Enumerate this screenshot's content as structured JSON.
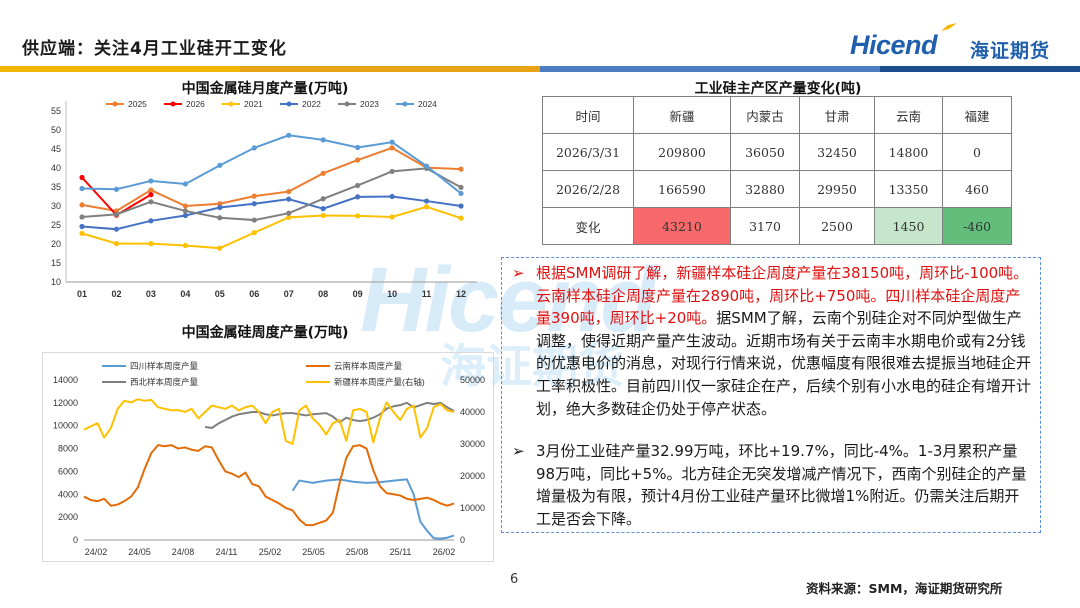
{
  "header": {
    "title": "供应端：关注4月工业硅开工变化",
    "logo_text": "Hicend",
    "logo_cn": "海证期货",
    "bar_colors": [
      "#f2b600",
      "#e8a317",
      "#4a7ec0",
      "#1f4e8c"
    ]
  },
  "watermark": {
    "text": "Hicend",
    "cn": "海证期货"
  },
  "monthly_chart": {
    "title": "中国金属硅月度产量(万吨)",
    "chart_data": {
      "type": "line",
      "title": "中国金属硅月度产量(万吨)",
      "categories": [
        "01",
        "02",
        "03",
        "04",
        "05",
        "06",
        "07",
        "08",
        "09",
        "10",
        "11",
        "12"
      ],
      "ylim": [
        10,
        55
      ],
      "yticks": [
        10,
        15,
        20,
        25,
        30,
        35,
        40,
        45,
        50,
        55
      ],
      "series": [
        {
          "name": "2025",
          "color": "#ed7d31",
          "values": [
            30.3,
            28.7,
            34.2,
            30.0,
            30.6,
            32.6,
            33.8,
            38.6,
            42.1,
            45.3,
            40.1,
            39.7
          ]
        },
        {
          "name": "2026",
          "color": "#ff0000",
          "values": [
            37.5,
            27.6,
            33.0,
            null,
            null,
            null,
            null,
            null,
            null,
            null,
            null,
            null
          ]
        },
        {
          "name": "2021",
          "color": "#ffc000",
          "values": [
            22.8,
            20.1,
            20.1,
            19.6,
            18.9,
            23.0,
            27.0,
            27.5,
            27.4,
            27.1,
            29.8,
            26.8
          ]
        },
        {
          "name": "2022",
          "color": "#4472c4",
          "values": [
            24.6,
            23.9,
            26.1,
            27.5,
            29.6,
            30.6,
            31.8,
            29.3,
            32.4,
            32.5,
            31.3,
            30.0
          ]
        },
        {
          "name": "2023",
          "color": "#808080",
          "values": [
            27.1,
            27.8,
            31.1,
            28.7,
            26.9,
            26.3,
            28.1,
            31.9,
            35.4,
            39.1,
            39.9,
            34.9
          ]
        },
        {
          "name": "2024",
          "color": "#5b9bd5",
          "values": [
            34.6,
            34.4,
            36.6,
            35.8,
            40.7,
            45.3,
            48.6,
            47.4,
            45.4,
            46.8,
            40.5,
            33.3
          ]
        }
      ]
    }
  },
  "weekly_chart": {
    "title": "中国金属硅周度产量(万吨)",
    "chart_data": {
      "type": "line",
      "title": "中国金属硅周度产量(万吨)",
      "x_ticks": [
        "24/02",
        "24/05",
        "24/08",
        "24/11",
        "25/02",
        "25/05",
        "25/08",
        "25/11",
        "26/02"
      ],
      "ylim_left": [
        0,
        14000
      ],
      "yticks_left": [
        0,
        2000,
        4000,
        6000,
        8000,
        10000,
        12000,
        14000
      ],
      "ylim_right": [
        0,
        50000
      ],
      "yticks_right": [
        0,
        10000,
        20000,
        30000,
        40000,
        50000
      ],
      "series": [
        {
          "name": "四川样本周度产量",
          "color": "#5b9bd5",
          "axis": "left",
          "x": [
            15.5,
            16,
            17,
            18,
            19,
            20,
            21,
            22,
            23,
            24,
            24.5,
            25,
            25.5,
            26,
            26.5,
            27,
            27.5
          ],
          "values": [
            4300,
            5200,
            5000,
            5200,
            5300,
            5100,
            5000,
            5050,
            5200,
            5300,
            4000,
            1600,
            800,
            150,
            120,
            200,
            400
          ]
        },
        {
          "name": "云南样本周度产量",
          "color": "#e36c09",
          "axis": "left",
          "x": [
            0,
            0.5,
            1,
            1.5,
            2,
            2.5,
            3,
            3.5,
            4,
            4.5,
            5,
            5.5,
            6,
            6.5,
            7,
            7.5,
            8,
            8.5,
            9,
            9.5,
            10,
            10.5,
            11,
            11.5,
            12,
            12.5,
            13,
            13.5,
            14,
            14.5,
            15,
            15.5,
            16,
            16.5,
            17,
            17.5,
            18,
            18.5,
            19,
            19.5,
            20,
            20.5,
            21,
            21.5,
            22,
            22.5,
            23,
            23.5,
            24,
            24.5,
            25,
            25.5,
            26,
            26.5,
            27,
            27.5
          ],
          "values": [
            3800,
            3500,
            3400,
            3600,
            3000,
            3100,
            3400,
            3800,
            4600,
            6200,
            7600,
            8300,
            8200,
            8300,
            8000,
            8100,
            7900,
            7800,
            8200,
            8100,
            7000,
            6000,
            5800,
            5500,
            5900,
            4900,
            4700,
            3800,
            3500,
            3200,
            2800,
            2600,
            1800,
            1300,
            1300,
            1500,
            1700,
            2400,
            5000,
            7200,
            8200,
            8300,
            8000,
            6100,
            4700,
            4100,
            4000,
            3900,
            3600,
            3500,
            3600,
            3700,
            3500,
            3200,
            3000,
            3200
          ]
        },
        {
          "name": "西北样本周度产量",
          "color": "#808080",
          "axis": "left",
          "x": [
            9,
            9.5,
            10,
            10.5,
            11,
            11.5,
            12,
            12.5,
            13,
            13.5,
            14,
            14.5,
            15,
            15.5,
            16,
            16.5,
            17,
            17.5,
            18,
            18.5,
            19,
            19.5,
            20,
            20.5,
            21,
            21.5,
            22,
            22.5,
            23,
            23.5,
            24,
            24.5,
            25,
            25.5,
            26,
            26.5,
            27,
            27.5
          ],
          "values": [
            9900,
            9800,
            10200,
            10500,
            10800,
            11000,
            11100,
            11200,
            11200,
            11000,
            10900,
            11000,
            11100,
            11100,
            11000,
            10900,
            11000,
            11050,
            11100,
            10800,
            10300,
            10700,
            10500,
            10400,
            10500,
            10700,
            11000,
            11500,
            11700,
            11800,
            12000,
            11600,
            11800,
            12000,
            11900,
            12000,
            11600,
            11300
          ]
        },
        {
          "name": "新疆样本周度产量(右轴)",
          "color": "#ffc000",
          "axis": "right",
          "x": [
            0,
            0.5,
            1,
            1.5,
            2,
            2.5,
            3,
            3.5,
            4,
            4.5,
            5,
            5.5,
            6,
            6.5,
            7,
            7.5,
            8,
            8.5,
            9,
            9.5,
            10,
            10.5,
            11,
            11.5,
            12,
            12.5,
            13,
            13.5,
            14,
            14.5,
            15,
            15.5,
            16,
            16.5,
            17,
            17.5,
            18,
            18.5,
            19,
            19.5,
            20,
            20.5,
            21,
            21.5,
            22,
            22.5,
            23,
            23.5,
            24,
            24.5,
            25,
            25.5,
            26,
            26.5,
            27,
            27.5
          ],
          "values": [
            34500,
            35500,
            36500,
            32000,
            35000,
            41000,
            43500,
            43000,
            44000,
            43500,
            43800,
            41500,
            41000,
            40500,
            40600,
            40000,
            41000,
            38000,
            40000,
            42000,
            41500,
            41000,
            42000,
            40500,
            41500,
            42000,
            40000,
            36500,
            40000,
            41000,
            31000,
            30000,
            40500,
            42000,
            38000,
            36000,
            33000,
            36500,
            37500,
            31000,
            40500,
            41000,
            40000,
            30500,
            38000,
            43000,
            40000,
            37500,
            41000,
            42000,
            32000,
            35000,
            41500,
            42500,
            40500,
            40000
          ]
        }
      ]
    }
  },
  "production_table": {
    "title": "工业硅主产区产量变化(吨)",
    "headers": [
      "时间",
      "新疆",
      "内蒙古",
      "甘肃",
      "云南",
      "福建"
    ],
    "rows": [
      [
        "2026/3/31",
        "209800",
        "36050",
        "32450",
        "14800",
        "0"
      ],
      [
        "2026/2/28",
        "166590",
        "32880",
        "29950",
        "13350",
        "460"
      ],
      [
        "变化",
        "43210",
        "3170",
        "2500",
        "1450",
        "-460"
      ]
    ],
    "highlight_colors": {
      "xinjiang": "#f8696b",
      "yunnan": "#c6e6cc",
      "fujian": "#63be7b"
    }
  },
  "notes": {
    "b1_red": "根据SMM调研了解，新疆样本硅企周度产量在38150吨，周环比-100吨。云南样本硅企周度产量在2890吨，周环比+750吨。四川样本硅企周度产量390吨，周环比+20吨。",
    "b1_black": "据SMM了解，云南个别硅企对不同炉型做生产调整，使得近期产量产生波动。近期市场有关于云南丰水期电价或有2分钱的优惠电价的消息，对现行行情来说，优惠幅度有限很难去提振当地硅企开工率积极性。目前四川仅一家硅企在产，后续个别有小水电的硅企有增开计划，绝大多数硅企仍处于停产状态。",
    "b2": "3月份工业硅产量32.99万吨，环比+19.7%，同比-4%。1-3月累积产量98万吨，同比+5%。北方硅企无突发增减产情况下，西南个别硅企的产量增量极为有限，预计4月份工业硅产量环比微增1%附近。仍需关注后期开工是否会下降。",
    "arrow": "➢"
  },
  "footer": {
    "page_number": "6",
    "source": "资料来源：SMM，海证期货研究所"
  }
}
